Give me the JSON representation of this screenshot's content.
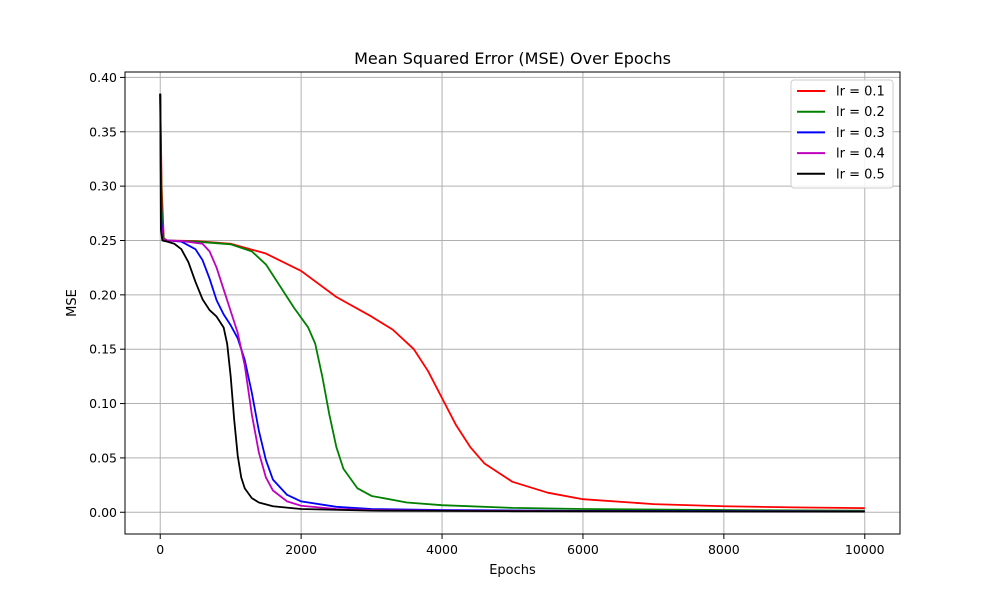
{
  "chart_data": {
    "type": "line",
    "title": "Mean Squared Error (MSE) Over Epochs",
    "xlabel": "Epochs",
    "ylabel": "MSE",
    "xlim": [
      -500,
      10500
    ],
    "ylim": [
      -0.02,
      0.405
    ],
    "xticks": [
      0,
      2000,
      4000,
      6000,
      8000,
      10000
    ],
    "xtick_labels": [
      "0",
      "2000",
      "4000",
      "6000",
      "8000",
      "10000"
    ],
    "yticks": [
      0.0,
      0.05,
      0.1,
      0.15,
      0.2,
      0.25,
      0.3,
      0.35,
      0.4
    ],
    "ytick_labels": [
      "0.00",
      "0.05",
      "0.10",
      "0.15",
      "0.20",
      "0.25",
      "0.30",
      "0.35",
      "0.40"
    ],
    "grid": true,
    "legend_position": "top-right",
    "series": [
      {
        "name": "lr = 0.1",
        "color": "#ff0000",
        "points": [
          [
            0,
            0.385
          ],
          [
            20,
            0.3
          ],
          [
            50,
            0.252
          ],
          [
            100,
            0.25
          ],
          [
            500,
            0.2495
          ],
          [
            1000,
            0.247
          ],
          [
            1500,
            0.238
          ],
          [
            2000,
            0.222
          ],
          [
            2500,
            0.198
          ],
          [
            3000,
            0.18
          ],
          [
            3300,
            0.168
          ],
          [
            3600,
            0.15
          ],
          [
            3800,
            0.13
          ],
          [
            4000,
            0.105
          ],
          [
            4200,
            0.08
          ],
          [
            4400,
            0.06
          ],
          [
            4600,
            0.045
          ],
          [
            5000,
            0.028
          ],
          [
            5500,
            0.018
          ],
          [
            6000,
            0.012
          ],
          [
            7000,
            0.0075
          ],
          [
            8000,
            0.0055
          ],
          [
            9000,
            0.0045
          ],
          [
            10000,
            0.0038
          ]
        ]
      },
      {
        "name": "lr = 0.2",
        "color": "#008000",
        "points": [
          [
            0,
            0.385
          ],
          [
            20,
            0.28
          ],
          [
            50,
            0.251
          ],
          [
            100,
            0.25
          ],
          [
            500,
            0.249
          ],
          [
            1000,
            0.2465
          ],
          [
            1300,
            0.24
          ],
          [
            1500,
            0.228
          ],
          [
            1700,
            0.208
          ],
          [
            1900,
            0.188
          ],
          [
            2100,
            0.17
          ],
          [
            2200,
            0.155
          ],
          [
            2300,
            0.125
          ],
          [
            2400,
            0.09
          ],
          [
            2500,
            0.06
          ],
          [
            2600,
            0.04
          ],
          [
            2800,
            0.022
          ],
          [
            3000,
            0.015
          ],
          [
            3500,
            0.009
          ],
          [
            4000,
            0.0065
          ],
          [
            5000,
            0.004
          ],
          [
            6000,
            0.003
          ],
          [
            8000,
            0.002
          ],
          [
            10000,
            0.0015
          ]
        ]
      },
      {
        "name": "lr = 0.3",
        "color": "#0000ff",
        "points": [
          [
            0,
            0.385
          ],
          [
            15,
            0.27
          ],
          [
            40,
            0.251
          ],
          [
            100,
            0.25
          ],
          [
            300,
            0.249
          ],
          [
            500,
            0.242
          ],
          [
            600,
            0.232
          ],
          [
            700,
            0.215
          ],
          [
            800,
            0.195
          ],
          [
            900,
            0.182
          ],
          [
            1000,
            0.172
          ],
          [
            1100,
            0.16
          ],
          [
            1200,
            0.14
          ],
          [
            1300,
            0.11
          ],
          [
            1400,
            0.075
          ],
          [
            1500,
            0.048
          ],
          [
            1600,
            0.03
          ],
          [
            1800,
            0.016
          ],
          [
            2000,
            0.01
          ],
          [
            2500,
            0.005
          ],
          [
            3000,
            0.003
          ],
          [
            4000,
            0.002
          ],
          [
            6000,
            0.0013
          ],
          [
            10000,
            0.0008
          ]
        ]
      },
      {
        "name": "lr = 0.4",
        "color": "#bf00bf",
        "points": [
          [
            0,
            0.385
          ],
          [
            15,
            0.265
          ],
          [
            35,
            0.251
          ],
          [
            100,
            0.25
          ],
          [
            300,
            0.2495
          ],
          [
            600,
            0.247
          ],
          [
            700,
            0.24
          ],
          [
            800,
            0.225
          ],
          [
            900,
            0.205
          ],
          [
            1000,
            0.185
          ],
          [
            1100,
            0.165
          ],
          [
            1200,
            0.135
          ],
          [
            1300,
            0.09
          ],
          [
            1400,
            0.055
          ],
          [
            1500,
            0.032
          ],
          [
            1600,
            0.02
          ],
          [
            1800,
            0.01
          ],
          [
            2000,
            0.006
          ],
          [
            2500,
            0.003
          ],
          [
            3000,
            0.002
          ],
          [
            4000,
            0.0015
          ],
          [
            6000,
            0.001
          ],
          [
            10000,
            0.0007
          ]
        ]
      },
      {
        "name": "lr = 0.5",
        "color": "#000000",
        "points": [
          [
            0,
            0.385
          ],
          [
            10,
            0.26
          ],
          [
            30,
            0.25
          ],
          [
            100,
            0.249
          ],
          [
            200,
            0.247
          ],
          [
            300,
            0.242
          ],
          [
            400,
            0.23
          ],
          [
            500,
            0.212
          ],
          [
            600,
            0.196
          ],
          [
            700,
            0.186
          ],
          [
            800,
            0.18
          ],
          [
            900,
            0.17
          ],
          [
            950,
            0.155
          ],
          [
            1000,
            0.125
          ],
          [
            1050,
            0.085
          ],
          [
            1100,
            0.052
          ],
          [
            1150,
            0.032
          ],
          [
            1200,
            0.022
          ],
          [
            1300,
            0.013
          ],
          [
            1400,
            0.009
          ],
          [
            1600,
            0.0055
          ],
          [
            2000,
            0.003
          ],
          [
            3000,
            0.0015
          ],
          [
            5000,
            0.001
          ],
          [
            10000,
            0.0006
          ]
        ]
      }
    ]
  }
}
